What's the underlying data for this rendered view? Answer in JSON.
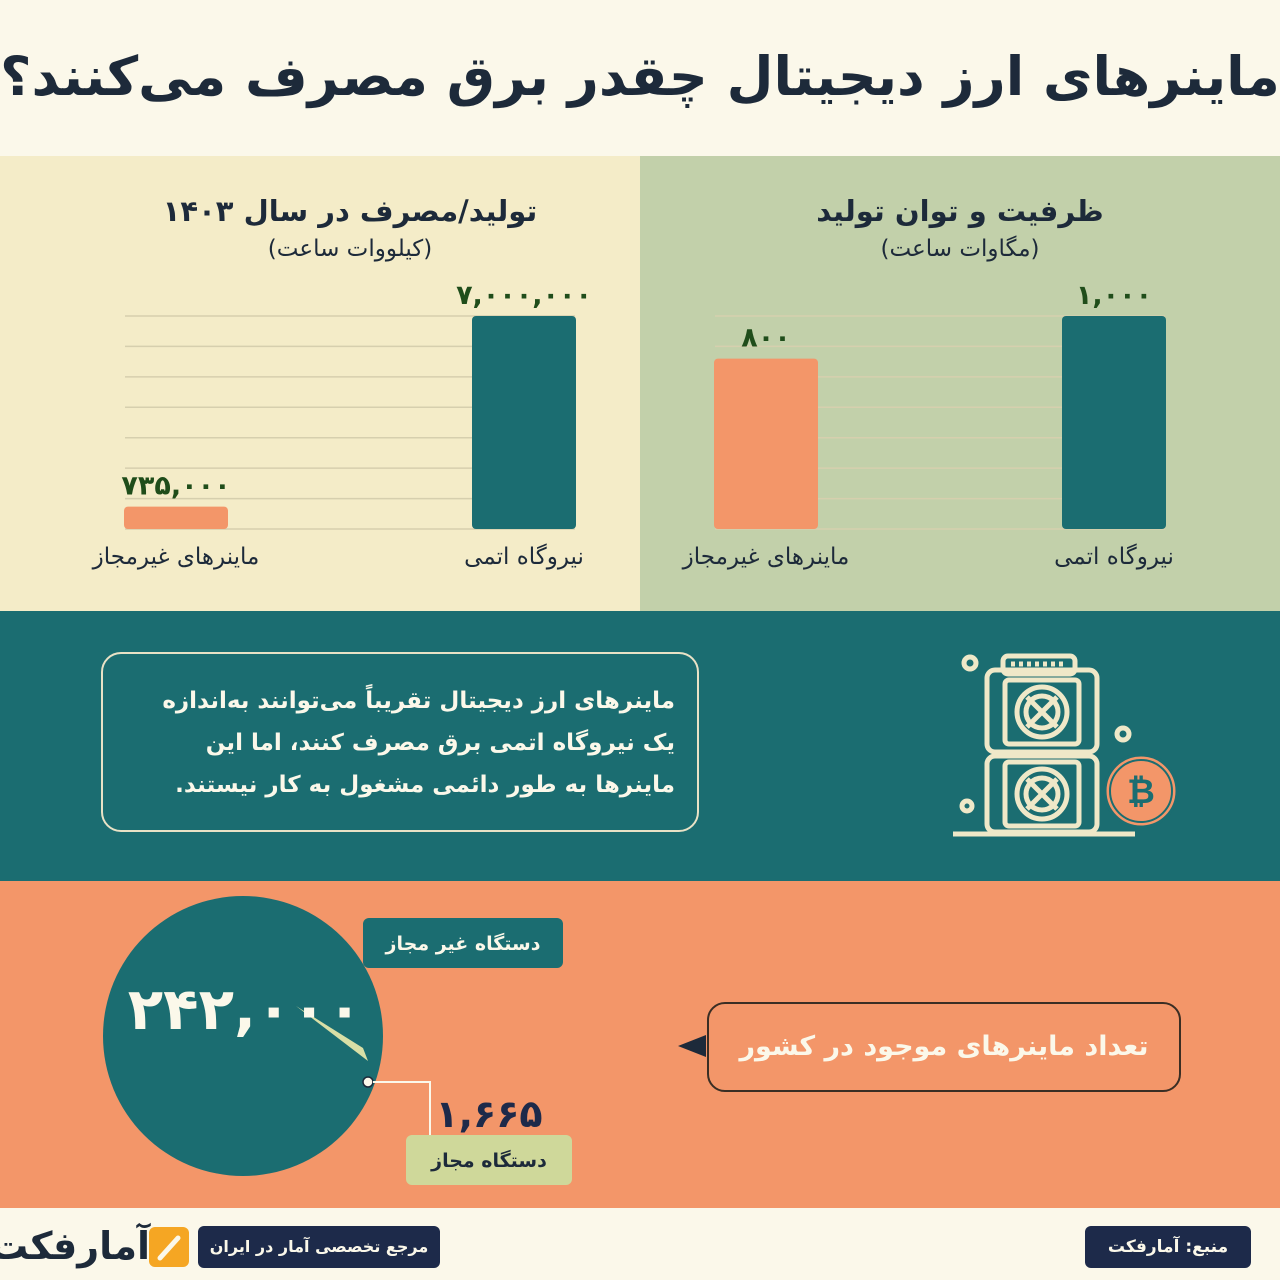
{
  "title": "ماینرهای ارز دیجیتال چقدر برق مصرف می‌کنند؟",
  "colors": {
    "teal": "#1b6d71",
    "orange": "#f39669",
    "cream": "#fbf8ea",
    "navy": "#1d2a4a",
    "olive": "#c2d0aa",
    "sand": "#f4ecc8",
    "value_green": "#1f4d1a"
  },
  "chart_data": [
    {
      "type": "bar",
      "title": "تولید/مصرف در سال ۱۴۰۳",
      "subtitle": "(کیلووات ساعت)",
      "categories": [
        "نیروگاه اتمی",
        "ماینرهای غیرمجاز"
      ],
      "values": [
        7000000,
        735000
      ],
      "value_labels": [
        "۷,۰۰۰,۰۰۰",
        "۷۳۵,۰۰۰"
      ],
      "bar_colors": [
        "#1b6d71",
        "#f39669"
      ],
      "ylim": [
        0,
        7000000
      ],
      "grid": true
    },
    {
      "type": "bar",
      "title": "ظرفیت و توان تولید",
      "subtitle": "(مگاوات ساعت)",
      "categories": [
        "نیروگاه اتمی",
        "ماینرهای غیرمجاز"
      ],
      "values": [
        1000,
        800
      ],
      "value_labels": [
        "۱,۰۰۰",
        "۸۰۰"
      ],
      "bar_colors": [
        "#1b6d71",
        "#f39669"
      ],
      "ylim": [
        0,
        1000
      ],
      "grid": true
    },
    {
      "type": "pie",
      "slices": [
        {
          "label": "دستگاه غیر مجاز",
          "value": 242000,
          "value_label": "۲۴۲,۰۰۰",
          "color": "#1b6d71"
        },
        {
          "label": "دستگاه مجاز",
          "value": 1665,
          "value_label": "۱,۶۶۵",
          "color": "#d9dfa6"
        }
      ]
    }
  ],
  "note": {
    "lines": [
      "ماینرهای ارز دیجیتال تقریباً  می‌توانند به‌اندازه",
      "یک نیروگاه اتمی برق مصرف کنند، اما این",
      "ماینرها به طور دائمی مشغول به کار نیستند."
    ]
  },
  "count_label": "تعداد ماینرهای موجود در کشور",
  "footer": {
    "logo_text": "آمارفکت",
    "tagline": "مرجع تخصصی آمار در ایران",
    "source": "منبع: آمارفکت"
  },
  "icons": {
    "miner": "crypto-miner-icon",
    "bitcoin": "bitcoin-icon",
    "logo": "amarfact-logo-icon"
  }
}
